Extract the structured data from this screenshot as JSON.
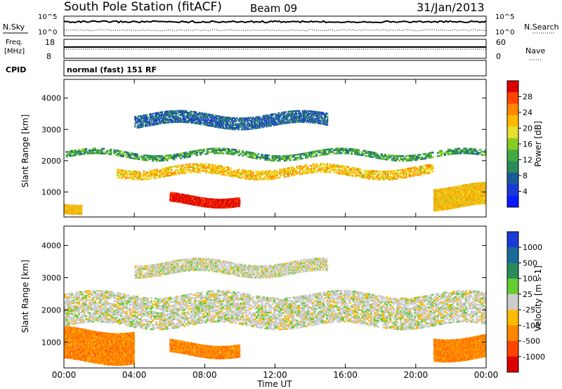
{
  "header": {
    "station": "South Pole Station (fitACF)",
    "beam": "Beam 09",
    "date": "31/Jan/2013"
  },
  "side_labels": {
    "nsky": "N.Sky",
    "nsky_top": "10^5",
    "nsky_bottom": "10^0",
    "nsearch": "N.Search",
    "nsearch_top": "10^5",
    "nsearch_bottom": "10^0",
    "freq_line1": "Freq.",
    "freq_line2": "[MHz]",
    "freq_top": "18",
    "freq_bottom": "8",
    "nave": "Nave",
    "nave_top": "60",
    "nave_bottom": "0",
    "cpid": "CPID",
    "cpid_value": "normal (fast) 151 RF"
  },
  "chart_data": [
    {
      "type": "heatmap",
      "name": "power-panel",
      "ylabel": "Slant Range [km]",
      "xlabel": "",
      "ylim": [
        200,
        4600
      ],
      "y_ticks": [
        1000,
        2000,
        3000,
        4000
      ],
      "colorbar": {
        "label": "Power [dB]",
        "ticks": [
          "28",
          "24",
          "20",
          "16",
          "12",
          "8",
          "4"
        ],
        "colors": [
          "#dd0000",
          "#ff4400",
          "#ff8800",
          "#ffbb00",
          "#e8e030",
          "#88cc22",
          "#44aa44",
          "#2a8a5a",
          "#1a5a9a",
          "#1a3ad8",
          "#0a1aff"
        ]
      },
      "echo_bands": [
        {
          "t": [
            0,
            24
          ],
          "range": [
            2100,
            2300
          ],
          "power": 12
        },
        {
          "t": [
            3,
            21
          ],
          "range": [
            1500,
            1800
          ],
          "power": 20
        },
        {
          "t": [
            4,
            15
          ],
          "range": [
            3100,
            3500
          ],
          "power": 8
        },
        {
          "t": [
            6,
            10
          ],
          "range": [
            600,
            900
          ],
          "power": 28
        },
        {
          "t": [
            0,
            1
          ],
          "range": [
            400,
            700
          ],
          "power": 20
        },
        {
          "t": [
            21,
            24
          ],
          "range": [
            500,
            1200
          ],
          "power": 20
        }
      ]
    },
    {
      "type": "heatmap",
      "name": "velocity-panel",
      "ylabel": "Slant Range [km]",
      "xlabel": "Time UT",
      "ylim": [
        200,
        4600
      ],
      "y_ticks": [
        1000,
        2000,
        3000,
        4000
      ],
      "x_ticks": [
        "00:00",
        "04:00",
        "08:00",
        "12:00",
        "16:00",
        "20:00",
        "00:00"
      ],
      "colorbar": {
        "label": "Velocity [m s-1]",
        "ticks": [
          "1000",
          "500",
          "100",
          "25",
          "-25",
          "-100",
          "-500",
          "-1000"
        ],
        "colors": [
          "#1a3ad8",
          "#1a6a9a",
          "#2a8a5a",
          "#66cc33",
          "#cccccc",
          "#ffbb00",
          "#ff8800",
          "#ff4400",
          "#dd0000"
        ]
      },
      "echo_bands": [
        {
          "t": [
            0,
            24
          ],
          "range": [
            1500,
            2500
          ],
          "velocity": 0
        },
        {
          "t": [
            4,
            15
          ],
          "range": [
            3100,
            3500
          ],
          "velocity": 0
        },
        {
          "t": [
            0,
            4
          ],
          "range": [
            400,
            1400
          ],
          "velocity": -300
        },
        {
          "t": [
            6,
            10
          ],
          "range": [
            600,
            1000
          ],
          "velocity": -300
        },
        {
          "t": [
            21,
            24
          ],
          "range": [
            500,
            1200
          ],
          "velocity": -300
        }
      ]
    }
  ]
}
